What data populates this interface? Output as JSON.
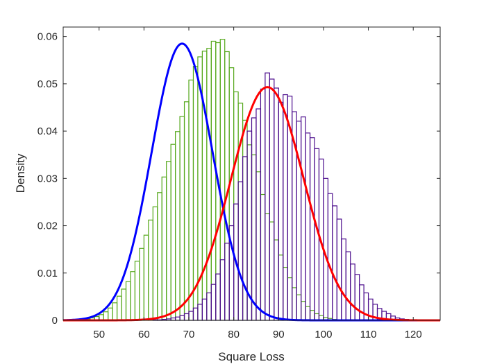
{
  "chart_data": {
    "type": "histogram",
    "title": "",
    "xlabel": "Square Loss",
    "ylabel": "Density",
    "xlim": [
      42,
      126
    ],
    "ylim": [
      0,
      0.062
    ],
    "xticks": [
      50,
      60,
      70,
      80,
      90,
      100,
      110,
      120
    ],
    "yticks": [
      0,
      0.01,
      0.02,
      0.03,
      0.04,
      0.05,
      0.06
    ],
    "ytick_labels": [
      "0",
      "0.01",
      "0.02",
      "0.03",
      "0.04",
      "0.05",
      "0.06"
    ],
    "grid": false,
    "box": true,
    "bin_width": 1,
    "series": [
      {
        "kind": "histogram",
        "color": "#55a81b",
        "bin_start": 44,
        "values": [
          0.0001,
          0.0001,
          0.0002,
          0.0003,
          0.0005,
          0.0008,
          0.0012,
          0.0018,
          0.0026,
          0.0037,
          0.0051,
          0.0066,
          0.0082,
          0.0103,
          0.0125,
          0.0152,
          0.018,
          0.0212,
          0.024,
          0.027,
          0.0303,
          0.0336,
          0.0372,
          0.0399,
          0.0431,
          0.0462,
          0.0508,
          0.0537,
          0.0557,
          0.0569,
          0.0575,
          0.059,
          0.0587,
          0.0594,
          0.0568,
          0.0534,
          0.0483,
          0.0459,
          0.0423,
          0.0371,
          0.035,
          0.0314,
          0.0266,
          0.0226,
          0.0208,
          0.017,
          0.0138,
          0.0112,
          0.009,
          0.0069,
          0.0054,
          0.004,
          0.0029,
          0.0021,
          0.0014,
          0.001,
          0.0006,
          0.0004,
          0.0002,
          0.0001,
          0.0001
        ]
      },
      {
        "kind": "histogram",
        "color": "#4b0c8c",
        "bin_start": 62,
        "values": [
          0.0001,
          0.0001,
          0.0002,
          0.0003,
          0.0005,
          0.0007,
          0.001,
          0.0014,
          0.0019,
          0.0026,
          0.0034,
          0.0045,
          0.0058,
          0.0076,
          0.0098,
          0.0128,
          0.0163,
          0.02,
          0.0246,
          0.0293,
          0.0346,
          0.04,
          0.0428,
          0.0447,
          0.0489,
          0.0523,
          0.051,
          0.0491,
          0.0461,
          0.0477,
          0.0474,
          0.0441,
          0.0421,
          0.043,
          0.0396,
          0.0386,
          0.0363,
          0.0341,
          0.03,
          0.0268,
          0.0242,
          0.0214,
          0.0172,
          0.0145,
          0.0119,
          0.0097,
          0.0075,
          0.0058,
          0.0045,
          0.0034,
          0.0025,
          0.0019,
          0.0014,
          0.0009,
          0.0005,
          0.0003,
          0.0002,
          0.0001
        ]
      },
      {
        "kind": "normal_fit",
        "color": "#0000ff",
        "mean": 68.5,
        "std": 6.8,
        "peak": 0.0585
      },
      {
        "kind": "normal_fit",
        "color": "#ff0000",
        "mean": 87.5,
        "std": 8.1,
        "peak": 0.0493
      }
    ]
  }
}
